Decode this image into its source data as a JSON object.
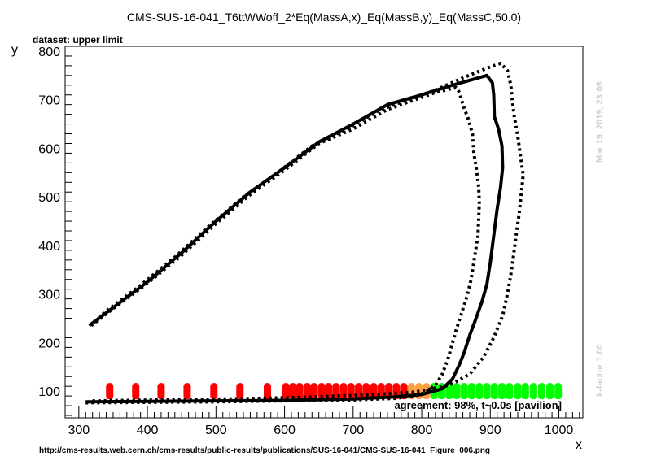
{
  "chart_data": {
    "type": "scatter",
    "title": "CMS-SUS-16-041_T6ttWWoff_2*Eq(MassA,x)_Eq(MassB,y)_Eq(MassC,50.0)",
    "subtitle": "dataset: upper limit",
    "xlabel": "x",
    "ylabel": "y",
    "xlim": [
      280,
      1035
    ],
    "ylim": [
      45,
      810
    ],
    "x_ticks": [
      300,
      400,
      500,
      600,
      700,
      800,
      900,
      1000
    ],
    "y_ticks": [
      100,
      200,
      300,
      400,
      500,
      600,
      700,
      800
    ],
    "agreement_text": "agreement: 98%, t~0.0s [pavilion]",
    "timestamp_text": "Mar 19, 2019, 23:06",
    "kfactor_text": "k-factor 1.00",
    "footer_url": "http://cms-results.web.cern.ch/cms-results/public-results/publications/SUS-16-041/CMS-SUS-16-041_Figure_006.png",
    "colors": {
      "excluded": "#ff0000",
      "borderline": "#ffa040",
      "allowed": "#00ff00",
      "line": "#000000"
    },
    "grid_points": [
      {
        "x": 345,
        "y": 100,
        "status": "excluded"
      },
      {
        "x": 383,
        "y": 100,
        "status": "excluded"
      },
      {
        "x": 420,
        "y": 100,
        "status": "excluded"
      },
      {
        "x": 458,
        "y": 100,
        "status": "excluded"
      },
      {
        "x": 497,
        "y": 100,
        "status": "excluded"
      },
      {
        "x": 535,
        "y": 100,
        "status": "excluded"
      },
      {
        "x": 575,
        "y": 100,
        "status": "excluded"
      },
      {
        "x": 602,
        "y": 100,
        "status": "excluded"
      },
      {
        "x": 612,
        "y": 100,
        "status": "excluded"
      },
      {
        "x": 622,
        "y": 100,
        "status": "excluded"
      },
      {
        "x": 633,
        "y": 100,
        "status": "excluded"
      },
      {
        "x": 643,
        "y": 100,
        "status": "excluded"
      },
      {
        "x": 654,
        "y": 100,
        "status": "excluded"
      },
      {
        "x": 664,
        "y": 100,
        "status": "excluded"
      },
      {
        "x": 675,
        "y": 100,
        "status": "excluded"
      },
      {
        "x": 686,
        "y": 100,
        "status": "excluded"
      },
      {
        "x": 697,
        "y": 100,
        "status": "excluded"
      },
      {
        "x": 708,
        "y": 100,
        "status": "excluded"
      },
      {
        "x": 719,
        "y": 100,
        "status": "excluded"
      },
      {
        "x": 730,
        "y": 100,
        "status": "excluded"
      },
      {
        "x": 741,
        "y": 100,
        "status": "excluded"
      },
      {
        "x": 752,
        "y": 100,
        "status": "excluded"
      },
      {
        "x": 763,
        "y": 100,
        "status": "excluded"
      },
      {
        "x": 774,
        "y": 100,
        "status": "excluded"
      },
      {
        "x": 785,
        "y": 100,
        "status": "borderline"
      },
      {
        "x": 796,
        "y": 100,
        "status": "borderline"
      },
      {
        "x": 807,
        "y": 100,
        "status": "borderline"
      },
      {
        "x": 818,
        "y": 100,
        "status": "allowed"
      },
      {
        "x": 829,
        "y": 100,
        "status": "allowed"
      },
      {
        "x": 840,
        "y": 100,
        "status": "allowed"
      },
      {
        "x": 851,
        "y": 100,
        "status": "allowed"
      },
      {
        "x": 862,
        "y": 100,
        "status": "allowed"
      },
      {
        "x": 873,
        "y": 100,
        "status": "allowed"
      },
      {
        "x": 884,
        "y": 100,
        "status": "allowed"
      },
      {
        "x": 895,
        "y": 100,
        "status": "allowed"
      },
      {
        "x": 906,
        "y": 100,
        "status": "allowed"
      },
      {
        "x": 917,
        "y": 100,
        "status": "allowed"
      },
      {
        "x": 928,
        "y": 100,
        "status": "allowed"
      },
      {
        "x": 940,
        "y": 100,
        "status": "allowed"
      },
      {
        "x": 951,
        "y": 100,
        "status": "allowed"
      },
      {
        "x": 963,
        "y": 100,
        "status": "allowed"
      },
      {
        "x": 975,
        "y": 100,
        "status": "allowed"
      },
      {
        "x": 987,
        "y": 100,
        "status": "allowed"
      },
      {
        "x": 999,
        "y": 100,
        "status": "allowed"
      }
    ],
    "series": [
      {
        "style": "solid",
        "points": [
          [
            310,
            78
          ],
          [
            400,
            79
          ],
          [
            500,
            80
          ],
          [
            600,
            81
          ],
          [
            700,
            84
          ],
          [
            760,
            88
          ],
          [
            800,
            93
          ],
          [
            830,
            105
          ],
          [
            845,
            125
          ],
          [
            855,
            155
          ],
          [
            862,
            180
          ],
          [
            870,
            215
          ],
          [
            878,
            245
          ],
          [
            888,
            285
          ],
          [
            895,
            320
          ],
          [
            900,
            365
          ],
          [
            905,
            420
          ],
          [
            910,
            475
          ],
          [
            915,
            520
          ],
          [
            918,
            560
          ],
          [
            917,
            605
          ],
          [
            912,
            640
          ],
          [
            906,
            665
          ],
          [
            905,
            710
          ],
          [
            903,
            735
          ],
          [
            895,
            750
          ],
          [
            870,
            740
          ],
          [
            840,
            728
          ],
          [
            800,
            710
          ],
          [
            750,
            690
          ],
          [
            700,
            650
          ],
          [
            650,
            613
          ],
          [
            600,
            560
          ],
          [
            550,
            510
          ],
          [
            500,
            450
          ],
          [
            450,
            385
          ],
          [
            400,
            325
          ],
          [
            350,
            272
          ],
          [
            315,
            235
          ]
        ]
      },
      {
        "style": "dotted",
        "points": [
          [
            310,
            76
          ],
          [
            400,
            77
          ],
          [
            500,
            78
          ],
          [
            600,
            80
          ],
          [
            700,
            82
          ],
          [
            760,
            85
          ],
          [
            790,
            90
          ],
          [
            805,
            97
          ],
          [
            820,
            112
          ],
          [
            830,
            135
          ],
          [
            838,
            165
          ],
          [
            843,
            190
          ],
          [
            850,
            225
          ],
          [
            858,
            260
          ],
          [
            866,
            295
          ],
          [
            872,
            330
          ],
          [
            877,
            375
          ],
          [
            882,
            420
          ],
          [
            883,
            455
          ],
          [
            884,
            490
          ],
          [
            883,
            520
          ],
          [
            880,
            555
          ],
          [
            876,
            590
          ],
          [
            874,
            630
          ],
          [
            868,
            660
          ],
          [
            860,
            690
          ],
          [
            855,
            715
          ],
          [
            850,
            725
          ],
          [
            820,
            715
          ],
          [
            790,
            700
          ],
          [
            750,
            680
          ],
          [
            700,
            640
          ],
          [
            650,
            610
          ],
          [
            600,
            555
          ],
          [
            550,
            505
          ],
          [
            500,
            445
          ],
          [
            450,
            380
          ],
          [
            400,
            322
          ],
          [
            350,
            270
          ],
          [
            318,
            235
          ]
        ]
      },
      {
        "style": "dotted",
        "points": [
          [
            320,
            80
          ],
          [
            420,
            82
          ],
          [
            520,
            84
          ],
          [
            620,
            87
          ],
          [
            720,
            92
          ],
          [
            790,
            98
          ],
          [
            840,
            112
          ],
          [
            870,
            135
          ],
          [
            890,
            170
          ],
          [
            905,
            210
          ],
          [
            918,
            255
          ],
          [
            925,
            300
          ],
          [
            930,
            340
          ],
          [
            934,
            380
          ],
          [
            938,
            425
          ],
          [
            942,
            465
          ],
          [
            945,
            505
          ],
          [
            948,
            545
          ],
          [
            944,
            585
          ],
          [
            940,
            625
          ],
          [
            935,
            665
          ],
          [
            932,
            700
          ],
          [
            930,
            730
          ],
          [
            925,
            760
          ],
          [
            915,
            775
          ],
          [
            895,
            765
          ],
          [
            860,
            745
          ],
          [
            820,
            720
          ],
          [
            780,
            700
          ],
          [
            740,
            680
          ],
          [
            690,
            640
          ],
          [
            640,
            605
          ],
          [
            590,
            550
          ],
          [
            540,
            500
          ],
          [
            490,
            440
          ],
          [
            440,
            376
          ],
          [
            390,
            318
          ],
          [
            340,
            265
          ],
          [
            320,
            238
          ]
        ]
      }
    ]
  }
}
